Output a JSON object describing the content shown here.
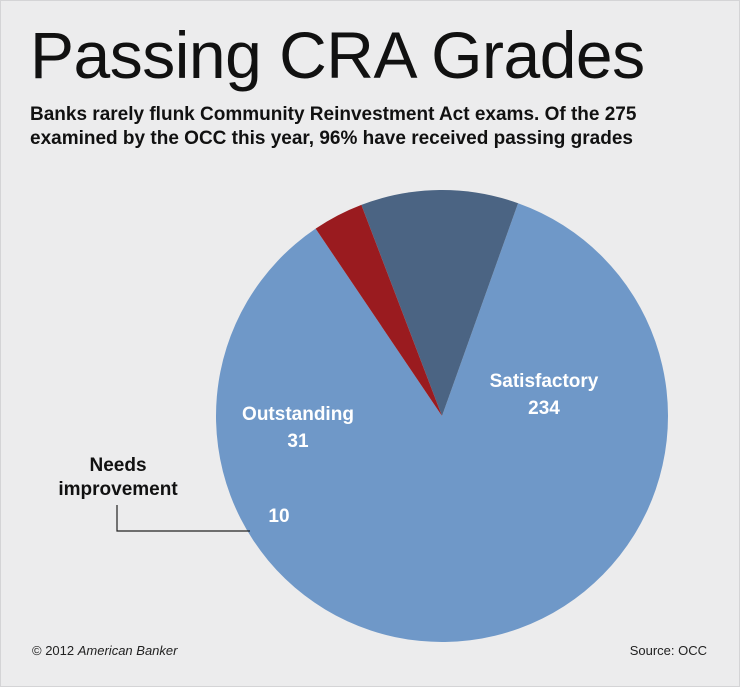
{
  "chart_data": {
    "type": "pie",
    "title": "Passing CRA Grades",
    "subtitle": "Banks rarely flunk Community Reinvestment Act exams. Of the 275 examined by the OCC this year, 96% have received passing grades",
    "slices": [
      {
        "name": "Satisfactory",
        "value": 234,
        "color": "#6f98c8"
      },
      {
        "name": "Outstanding",
        "value": 31,
        "color": "#4b6483"
      },
      {
        "name": "Needs improvement",
        "value": 10,
        "color": "#9a1b1f"
      }
    ],
    "callout_label_lines": [
      "Needs",
      "improvement"
    ],
    "total": 275
  },
  "footer": {
    "copyright_prefix": "© 2012",
    "copyright_org": "American Banker",
    "source": "Source: OCC"
  }
}
